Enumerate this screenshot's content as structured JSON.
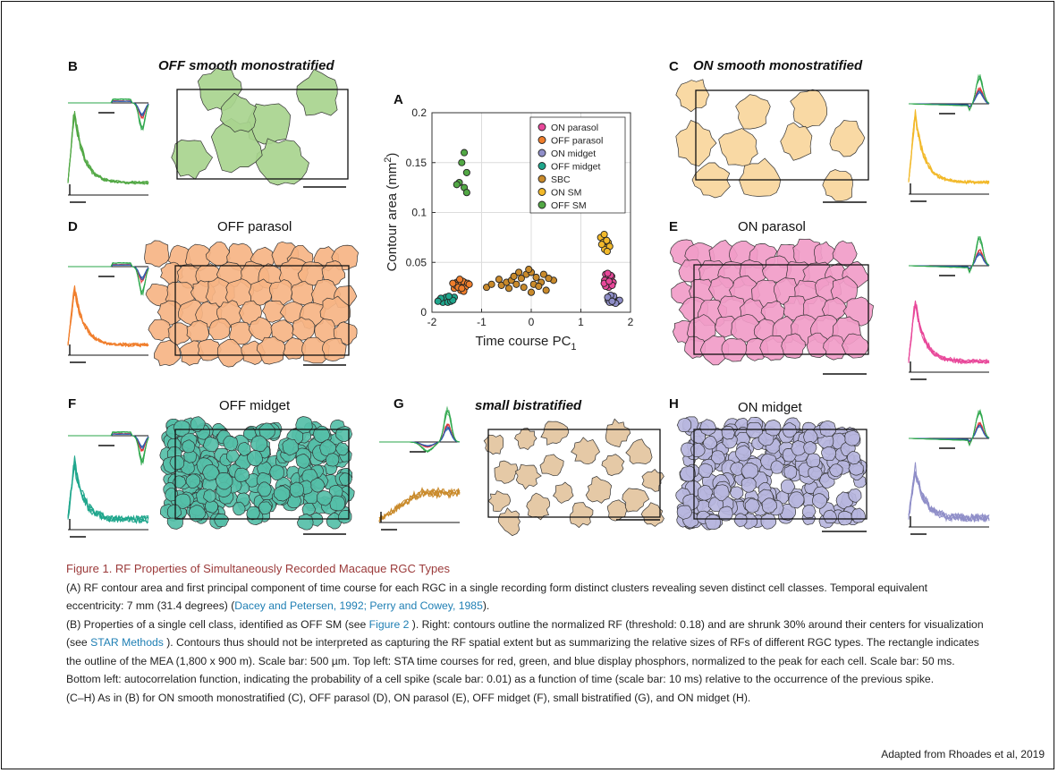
{
  "panels": {
    "A": {
      "label": "A"
    },
    "B": {
      "label": "B",
      "title": "OFF smooth monostratified"
    },
    "C": {
      "label": "C",
      "title": "ON smooth monostratified"
    },
    "D": {
      "label": "D",
      "title": "OFF parasol"
    },
    "E": {
      "label": "E",
      "title": "ON parasol"
    },
    "F": {
      "label": "F",
      "title": "OFF midget"
    },
    "G": {
      "label": "G",
      "title": "small bistratified"
    },
    "H": {
      "label": "H",
      "title": "ON midget"
    }
  },
  "colors": {
    "on_parasol": "#e8489a",
    "off_parasol": "#f07e2c",
    "on_midget": "#8f8ec8",
    "off_midget": "#1fa68c",
    "sbc": "#c98a2b",
    "on_sm": "#f2b92a",
    "off_sm": "#52a845",
    "on_parasol_fill": "#f19cc8",
    "off_parasol_fill": "#f6b484",
    "on_midget_fill": "#b7b6de",
    "off_midget_fill": "#55bfa8",
    "sbc_fill": "#e3c49e",
    "on_sm_fill": "#f8d69c",
    "off_sm_fill": "#a8d48e",
    "caption_title": "#9b3a3a",
    "link": "#1f7fb4"
  },
  "chart_data": {
    "type": "scatter",
    "xlabel": "Time course PC",
    "xlabel_sub": "1",
    "ylabel": "Contour area (mm",
    "ylabel_sup": "2",
    "ylabel_end": ")",
    "xlim": [
      -2,
      2
    ],
    "ylim": [
      0,
      0.2
    ],
    "xticks": [
      "-2",
      "-1",
      "0",
      "1",
      "2"
    ],
    "yticks": [
      "0",
      "0.05",
      "0.1",
      "0.15",
      "0.2"
    ],
    "legend_position": "top-right",
    "series": [
      {
        "name": "ON parasol",
        "color": "#e8489a",
        "points": [
          [
            1.5,
            0.038
          ],
          [
            1.55,
            0.035
          ],
          [
            1.6,
            0.033
          ],
          [
            1.52,
            0.03
          ],
          [
            1.58,
            0.028
          ],
          [
            1.62,
            0.036
          ],
          [
            1.48,
            0.032
          ],
          [
            1.65,
            0.03
          ],
          [
            1.56,
            0.025
          ],
          [
            1.5,
            0.026
          ],
          [
            1.6,
            0.037
          ],
          [
            1.54,
            0.039
          ],
          [
            1.63,
            0.027
          ],
          [
            1.47,
            0.029
          ],
          [
            1.57,
            0.031
          ]
        ]
      },
      {
        "name": "OFF parasol",
        "color": "#f07e2c",
        "points": [
          [
            -1.5,
            0.03
          ],
          [
            -1.45,
            0.028
          ],
          [
            -1.4,
            0.026
          ],
          [
            -1.35,
            0.03
          ],
          [
            -1.3,
            0.027
          ],
          [
            -1.55,
            0.024
          ],
          [
            -1.42,
            0.022
          ],
          [
            -1.38,
            0.031
          ],
          [
            -1.48,
            0.029
          ],
          [
            -1.33,
            0.025
          ],
          [
            -1.52,
            0.027
          ],
          [
            -1.28,
            0.029
          ],
          [
            -1.44,
            0.033
          ],
          [
            -1.36,
            0.021
          ],
          [
            -1.47,
            0.025
          ],
          [
            -1.25,
            0.028
          ],
          [
            -1.58,
            0.029
          ],
          [
            -1.4,
            0.024
          ]
        ]
      },
      {
        "name": "ON midget",
        "color": "#8f8ec8",
        "points": [
          [
            1.55,
            0.012
          ],
          [
            1.6,
            0.011
          ],
          [
            1.65,
            0.01
          ],
          [
            1.7,
            0.012
          ],
          [
            1.75,
            0.011
          ],
          [
            1.62,
            0.014
          ],
          [
            1.68,
            0.013
          ],
          [
            1.58,
            0.01
          ],
          [
            1.72,
            0.01
          ],
          [
            1.66,
            0.016
          ],
          [
            1.6,
            0.017
          ],
          [
            1.78,
            0.012
          ],
          [
            1.54,
            0.015
          ],
          [
            1.7,
            0.009
          ],
          [
            1.63,
            0.011
          ]
        ]
      },
      {
        "name": "OFF midget",
        "color": "#1fa68c",
        "points": [
          [
            -1.85,
            0.012
          ],
          [
            -1.8,
            0.011
          ],
          [
            -1.75,
            0.013
          ],
          [
            -1.7,
            0.012
          ],
          [
            -1.65,
            0.014
          ],
          [
            -1.6,
            0.013
          ],
          [
            -1.55,
            0.015
          ],
          [
            -1.78,
            0.01
          ],
          [
            -1.72,
            0.015
          ],
          [
            -1.68,
            0.01
          ],
          [
            -1.82,
            0.014
          ],
          [
            -1.62,
            0.011
          ],
          [
            -1.58,
            0.012
          ],
          [
            -1.88,
            0.011
          ],
          [
            -1.66,
            0.016
          ]
        ]
      },
      {
        "name": "SBC",
        "color": "#c98a2b",
        "points": [
          [
            -0.9,
            0.025
          ],
          [
            -0.8,
            0.028
          ],
          [
            -0.6,
            0.027
          ],
          [
            -0.5,
            0.03
          ],
          [
            -0.4,
            0.032
          ],
          [
            -0.3,
            0.028
          ],
          [
            -0.2,
            0.034
          ],
          [
            -0.1,
            0.038
          ],
          [
            0.0,
            0.04
          ],
          [
            0.1,
            0.035
          ],
          [
            0.2,
            0.03
          ],
          [
            -0.35,
            0.036
          ],
          [
            -0.15,
            0.025
          ],
          [
            0.05,
            0.028
          ],
          [
            0.25,
            0.038
          ],
          [
            -0.05,
            0.043
          ],
          [
            0.3,
            0.022
          ],
          [
            0.45,
            0.032
          ],
          [
            -0.25,
            0.04
          ],
          [
            0.15,
            0.026
          ],
          [
            -0.45,
            0.024
          ],
          [
            0.35,
            0.034
          ],
          [
            -0.65,
            0.033
          ],
          [
            0.0,
            0.02
          ]
        ]
      },
      {
        "name": "ON SM",
        "color": "#f2b92a",
        "points": [
          [
            1.4,
            0.075
          ],
          [
            1.45,
            0.07
          ],
          [
            1.5,
            0.065
          ],
          [
            1.55,
            0.07
          ],
          [
            1.48,
            0.063
          ],
          [
            1.52,
            0.072
          ],
          [
            1.42,
            0.068
          ],
          [
            1.58,
            0.066
          ],
          [
            1.47,
            0.078
          ],
          [
            1.53,
            0.061
          ]
        ]
      },
      {
        "name": "OFF SM",
        "color": "#52a845",
        "points": [
          [
            -1.35,
            0.16
          ],
          [
            -1.4,
            0.15
          ],
          [
            -1.3,
            0.14
          ],
          [
            -1.45,
            0.13
          ],
          [
            -1.35,
            0.125
          ],
          [
            -1.5,
            0.128
          ],
          [
            -1.3,
            0.12
          ]
        ]
      }
    ]
  },
  "caption": {
    "title": "Figure 1.  RF Properties of Simultaneously Recorded Macaque RGC Types",
    "para1_a": "(A) RF contour area and first principal component of time course for each RGC in a single recording form distinct clusters revealing seven distinct cell classes. Temporal equivalent eccentricity: 7 mm (31.4 degrees) (",
    "para1_link": "Dacey and Petersen, 1992; Perry and Cowey, 1985",
    "para1_b": ").",
    "para2_a": "(B) Properties of a single cell class, identified as OFF SM (see ",
    "para2_link1": "Figure 2",
    "para2_b": " ). Right: contours outline the normalized RF (threshold: 0.18) and are shrunk 30% around their centers for visualization (see ",
    "para2_link2": "STAR Methods",
    "para2_c": " ). Contours thus should not be interpreted as capturing the RF spatial extent but as summarizing the relative sizes of RFs of different RGC types. The rectangle indicates the outline of the MEA (1,800 x  900  m). Scale bar: 500  µm. Top left: STA time courses for red, green, and blue display phosphors, normalized to the peak for each cell. Scale bar: 50 ms. Bottom left: autocorrelation function, indicating the probability of a cell spike (scale bar: 0.01) as a function of time (scale bar: 10 ms) relative to the occurrence of the previous spike.",
    "para3": "(C–H) As in (B) for ON smooth monostratified (C), OFF parasol (D), ON parasol (E), OFF midget (F), small bistratified (G), and ON midget (H)."
  },
  "credit": "Adapted from Rhoades et al, 2019"
}
